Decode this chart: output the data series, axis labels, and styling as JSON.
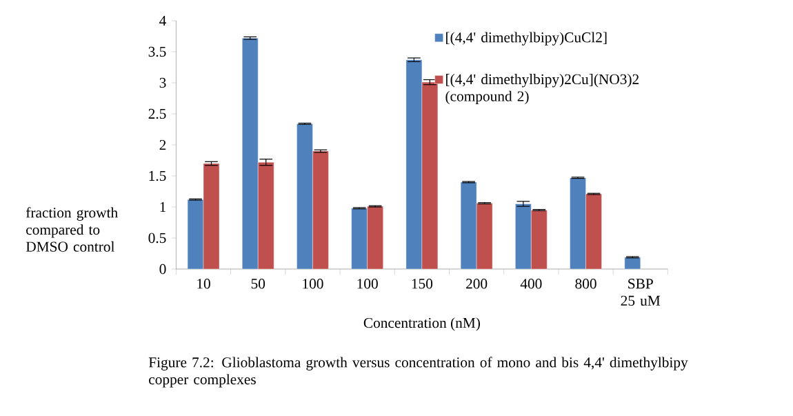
{
  "chart_data": {
    "type": "bar",
    "ylabel": "fraction growth compared to DMSO control",
    "xlabel": "Concentration (nM)",
    "categories": [
      "10",
      "50",
      "100",
      "100",
      "150",
      "200",
      "400",
      "800",
      "SBP 25 uM"
    ],
    "series": [
      {
        "name": "[(4,4' dimethylbipy)CuCl2]",
        "color": "#4f81bd",
        "values": [
          1.12,
          3.72,
          2.34,
          0.98,
          3.37,
          1.4,
          1.05,
          1.47,
          0.19
        ],
        "errors": [
          0.01,
          0.02,
          0.01,
          0.01,
          0.03,
          0.01,
          0.04,
          0.01,
          0.01
        ]
      },
      {
        "name": "[(4,4' dimethylbipy)2Cu](NO3)2 (compound 2)",
        "color": "#c0504d",
        "values": [
          1.7,
          1.72,
          1.9,
          1.01,
          3.01,
          1.06,
          0.95,
          1.21,
          null
        ],
        "errors": [
          0.03,
          0.05,
          0.02,
          0.01,
          0.04,
          0.01,
          0.01,
          0.01,
          null
        ]
      }
    ],
    "ylim": [
      0,
      4
    ],
    "yticks": [
      0,
      0.5,
      1,
      1.5,
      2,
      2.5,
      3,
      3.5,
      4
    ],
    "grid": false,
    "legend": "top right",
    "annotations": [
      "Figure 7.2: Glioblastoma growth versus concentration of  mono and bis 4,4' dimethylbipy copper complexes"
    ]
  }
}
